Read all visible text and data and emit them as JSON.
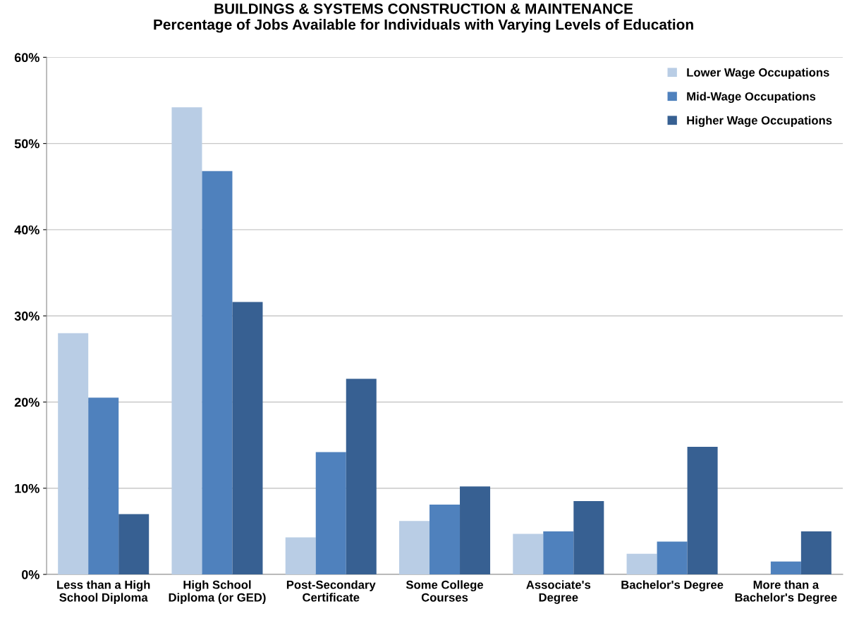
{
  "chart_data": {
    "type": "bar",
    "title": "BUILDINGS & SYSTEMS CONSTRUCTION & MAINTENANCE\nPercentage of Jobs Available for Individuals with Varying Levels of Education",
    "categories": [
      "Less than a High\nSchool Diploma",
      "High School\nDiploma (or GED)",
      "Post-Secondary\nCertificate",
      "Some College\nCourses",
      "Associate's\nDegree",
      "Bachelor's Degree",
      "More than a\nBachelor's Degree"
    ],
    "series": [
      {
        "name": "Lower Wage Occupations",
        "color": "#b9cde5",
        "values": [
          28.0,
          54.2,
          4.3,
          6.2,
          4.7,
          2.4,
          0
        ]
      },
      {
        "name": "Mid-Wage Occupations",
        "color": "#4f81bd",
        "values": [
          20.5,
          46.8,
          14.2,
          8.1,
          5.0,
          3.8,
          1.5
        ]
      },
      {
        "name": "Higher Wage Occupations",
        "color": "#376092",
        "values": [
          7.0,
          31.6,
          22.7,
          10.2,
          8.5,
          14.8,
          5.0
        ]
      }
    ],
    "ylim": [
      0,
      60
    ],
    "yticks": [
      {
        "value": 0,
        "label": "0%"
      },
      {
        "value": 10,
        "label": "10%"
      },
      {
        "value": 20,
        "label": "20%"
      },
      {
        "value": 30,
        "label": "30%"
      },
      {
        "value": 40,
        "label": "40%"
      },
      {
        "value": 50,
        "label": "50%"
      },
      {
        "value": 60,
        "label": "60%"
      }
    ],
    "grid": "y",
    "legend": "top right"
  }
}
